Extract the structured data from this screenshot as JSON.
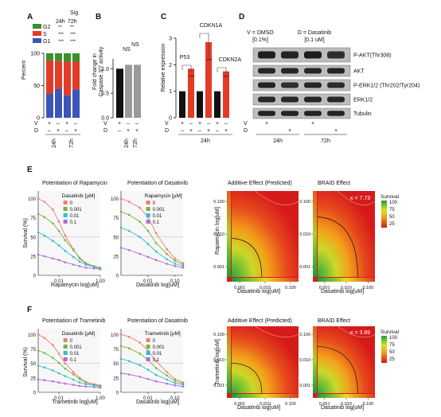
{
  "panel_labels": {
    "A": "A",
    "B": "B",
    "C": "C",
    "D": "D",
    "E": "E",
    "F": "F"
  },
  "panel_a": {
    "sig_title": "Sig",
    "sig_cols": [
      "24h",
      "72h"
    ],
    "legend": [
      {
        "label": "G2",
        "color": "#3a8f2f",
        "sig": [
          "**",
          "**"
        ]
      },
      {
        "label": "S",
        "color": "#e53a26",
        "sig": [
          "***",
          "***"
        ]
      },
      {
        "label": "G1",
        "color": "#3b56b8",
        "sig": [
          "***",
          "***"
        ]
      }
    ],
    "ylabel": "Percent",
    "yticks": [
      "0",
      "50",
      "100"
    ],
    "vd_rows": [
      {
        "label": "V",
        "marks": [
          "+",
          "–",
          "+",
          "–"
        ]
      },
      {
        "label": "D",
        "marks": [
          "–",
          "+",
          "–",
          "+"
        ]
      }
    ],
    "time_labels": [
      "24h",
      "72h"
    ]
  },
  "panel_b": {
    "ylabel_line1": "Fold change in",
    "ylabel_line2": "Caspase 3/7 activity",
    "sig": [
      "NS",
      "NS"
    ],
    "yticks": [
      "0.0",
      "0.5",
      "1.0"
    ],
    "vd_rows": [
      {
        "label": "V",
        "marks": [
          "+",
          "–",
          "–"
        ]
      },
      {
        "label": "D",
        "marks": [
          "–",
          "+",
          "+"
        ]
      }
    ],
    "time_labels": [
      "24h",
      "72h"
    ]
  },
  "panel_c": {
    "ylabel": "Relative expression",
    "genes": [
      "P53",
      "CDKN1A",
      "CDKN2A"
    ],
    "sig": [
      "***",
      "***",
      "***"
    ],
    "yticks": [
      "0",
      "1",
      "2",
      "3"
    ],
    "vd_rows": [
      {
        "label": "V",
        "marks": [
          "+",
          "–",
          "+",
          "–",
          "+",
          "–"
        ]
      },
      {
        "label": "D",
        "marks": [
          "–",
          "+",
          "–",
          "+",
          "–",
          "+"
        ]
      }
    ],
    "time_label": "24h"
  },
  "panel_d": {
    "header_v": "V = DMSO",
    "header_v_sub": "[0.1%]",
    "header_d": "D = Dasatinib",
    "header_d_sub": "[0.1 uM]",
    "bands": [
      "P-AKT(Thr308)",
      "AKT",
      "P-ERK1/2 (Thr202/Tyr204)",
      "ERK1/2",
      "Tubulin"
    ],
    "vd_rows": [
      {
        "label": "V",
        "marks": [
          "+",
          "",
          "+",
          ""
        ]
      },
      {
        "label": "D",
        "marks": [
          "",
          "+",
          "",
          "+"
        ]
      }
    ],
    "time_labels": [
      "24h",
      "72h"
    ]
  },
  "panel_e": {
    "title1": "Potentiation of Rapamycin",
    "title2": "Potentiation of Dasatinib",
    "title3": "Additive Effect (Predicted)",
    "title4": "BRAID Effect",
    "legend1_title": "Dasatinib [µM]",
    "legend2_title": "Rapamycin [µM]",
    "legend_items": [
      "0",
      "0.001",
      "0.01",
      "0.1"
    ],
    "ylabel1": "Survival (%)",
    "xlabel1": "Rapamycin log[uM]",
    "xlabel2": "Dasatinib log[uM]",
    "xlabel3": "Dasatinib log[uM]",
    "xlabel4": "Dasatinib log[uM]",
    "ylabel3": "Rapamycin log[uM]",
    "yticks": [
      "0",
      "25",
      "50",
      "75",
      "100"
    ],
    "xticks1": [
      "0.01",
      "1.00"
    ],
    "xticks2": [
      "0.01",
      "0.10"
    ],
    "xticks3": [
      "0.001",
      "0.010",
      "0.100"
    ],
    "yticks3": [
      "0.001",
      "0.010",
      "0.100"
    ],
    "kappa": "κ = 7.73",
    "colorbar_title": "Survival",
    "colorbar_ticks": [
      "100",
      "75",
      "50",
      "25"
    ]
  },
  "panel_f": {
    "title1": "Potentiation of Trametinib",
    "title2": "Potentiation of Dasatinib",
    "title3": "Additive Effect (Predicted)",
    "title4": "BRAID Effect",
    "legend1_title": "Dasatinib [µM]",
    "legend2_title": "Trametinib [µM]",
    "legend_items": [
      "0",
      "0.001",
      "0.01",
      "0.1"
    ],
    "ylabel1": "Survival (%)",
    "xlabel1": "Trametinib log[uM]",
    "xlabel2": "Dasatinib log[uM]",
    "xlabel3": "Dasatinib log[uM]",
    "xlabel4": "Dasatinib log[uM]",
    "ylabel3": "Trametinib log[uM]",
    "yticks": [
      "0",
      "25",
      "50",
      "75",
      "100"
    ],
    "xticks1": [
      "0.01",
      "1.00"
    ],
    "xticks2": [
      "0.01",
      "0.10"
    ],
    "xticks3": [
      "0.001",
      "0.010",
      "0.100"
    ],
    "yticks3": [
      "0.001",
      "0.010",
      "0.100"
    ],
    "kappa": "κ = 3.89",
    "colorbar_title": "Survival",
    "colorbar_ticks": [
      "100",
      "75",
      "50",
      "25"
    ]
  },
  "colors": {
    "red": "#e53a26",
    "gray": "#9a9a9a",
    "black": "#111111",
    "series": [
      "#f07b7b",
      "#78b43a",
      "#2ebfd0",
      "#b06adf"
    ]
  },
  "chart_data": [
    {
      "type": "bar",
      "id": "A",
      "stacked": true,
      "categories": [
        "24h V",
        "24h D",
        "72h V",
        "72h D"
      ],
      "series": [
        {
          "name": "G1",
          "values": [
            37,
            45,
            35,
            44
          ]
        },
        {
          "name": "S",
          "values": [
            52,
            43,
            52,
            43
          ]
        },
        {
          "name": "G2",
          "values": [
            11,
            12,
            13,
            13
          ]
        }
      ],
      "ylim": [
        0,
        100
      ]
    },
    {
      "type": "bar",
      "id": "B",
      "categories": [
        "V",
        "D 24h",
        "D 72h"
      ],
      "values": [
        1.0,
        1.08,
        1.08
      ],
      "ylim": [
        0,
        1.2
      ]
    },
    {
      "type": "bar",
      "id": "C",
      "categories": [
        "P53 V",
        "P53 D",
        "CDKN1A V",
        "CDKN1A D",
        "CDKN2A V",
        "CDKN2A D"
      ],
      "values": [
        1.0,
        1.85,
        1.0,
        2.85,
        1.0,
        1.75
      ],
      "ylim": [
        0,
        3
      ]
    },
    {
      "type": "line",
      "id": "E1",
      "x": [
        0.001,
        0.002,
        0.005,
        0.01,
        0.02,
        0.05,
        0.1,
        0.2,
        0.5,
        1
      ],
      "series": [
        {
          "name": "0",
          "values": [
            100,
            96,
            86,
            70,
            52,
            34,
            22,
            15,
            11,
            9
          ]
        },
        {
          "name": "0.001",
          "values": [
            80,
            76,
            68,
            58,
            46,
            33,
            23,
            16,
            12,
            10
          ]
        },
        {
          "name": "0.01",
          "values": [
            56,
            52,
            45,
            39,
            32,
            24,
            18,
            14,
            11,
            9
          ]
        },
        {
          "name": "0.1",
          "values": [
            27,
            25,
            22,
            20,
            17,
            14,
            12,
            10,
            9,
            8
          ]
        }
      ],
      "ylim": [
        0,
        110
      ]
    },
    {
      "type": "line",
      "id": "E2",
      "x": [
        0.001,
        0.002,
        0.005,
        0.01,
        0.02,
        0.05,
        0.1,
        0.2
      ],
      "series": [
        {
          "name": "0",
          "values": [
            100,
            96,
            88,
            76,
            55,
            34,
            22,
            16
          ]
        },
        {
          "name": "0.001",
          "values": [
            83,
            79,
            70,
            58,
            42,
            28,
            19,
            14
          ]
        },
        {
          "name": "0.01",
          "values": [
            62,
            58,
            50,
            41,
            31,
            21,
            15,
            12
          ]
        },
        {
          "name": "0.1",
          "values": [
            36,
            33,
            28,
            24,
            20,
            15,
            12,
            10
          ]
        }
      ],
      "ylim": [
        0,
        110
      ]
    },
    {
      "type": "line",
      "id": "F1",
      "x": [
        0.001,
        0.002,
        0.005,
        0.01,
        0.02,
        0.05,
        0.1,
        0.2,
        0.5,
        1
      ],
      "series": [
        {
          "name": "0",
          "values": [
            100,
            94,
            82,
            67,
            50,
            35,
            25,
            18,
            14,
            12
          ]
        },
        {
          "name": "0.001",
          "values": [
            72,
            68,
            60,
            51,
            41,
            31,
            23,
            17,
            13,
            11
          ]
        },
        {
          "name": "0.01",
          "values": [
            46,
            43,
            38,
            33,
            28,
            22,
            17,
            14,
            12,
            10
          ]
        },
        {
          "name": "0.1",
          "values": [
            22,
            21,
            19,
            17,
            15,
            13,
            11,
            10,
            9,
            8
          ]
        }
      ],
      "ylim": [
        0,
        110
      ]
    },
    {
      "type": "line",
      "id": "F2",
      "x": [
        0.001,
        0.002,
        0.005,
        0.01,
        0.02,
        0.05,
        0.1,
        0.2
      ],
      "series": [
        {
          "name": "0",
          "values": [
            100,
            96,
            86,
            72,
            54,
            35,
            23,
            17
          ]
        },
        {
          "name": "0.001",
          "values": [
            80,
            76,
            67,
            56,
            42,
            29,
            20,
            15
          ]
        },
        {
          "name": "0.01",
          "values": [
            58,
            54,
            47,
            39,
            30,
            22,
            16,
            13
          ]
        },
        {
          "name": "0.1",
          "values": [
            33,
            31,
            27,
            23,
            19,
            15,
            12,
            10
          ]
        }
      ],
      "ylim": [
        0,
        110
      ]
    },
    {
      "type": "heatmap",
      "id": "E3",
      "z_range": [
        0,
        100
      ]
    },
    {
      "type": "heatmap",
      "id": "E4",
      "z_range": [
        0,
        100
      ]
    },
    {
      "type": "heatmap",
      "id": "F3",
      "z_range": [
        0,
        100
      ]
    },
    {
      "type": "heatmap",
      "id": "F4",
      "z_range": [
        0,
        100
      ]
    }
  ]
}
